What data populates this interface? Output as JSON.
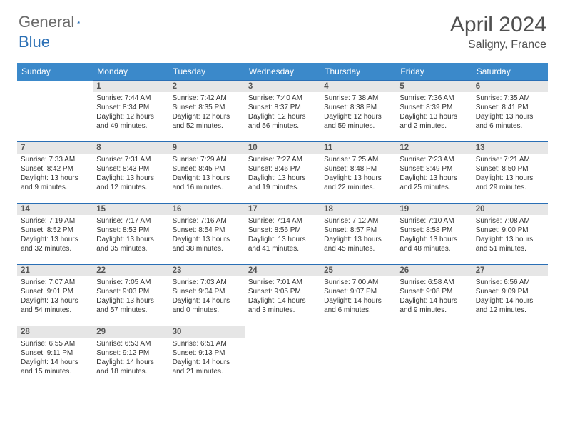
{
  "brand": {
    "general": "General",
    "blue": "Blue"
  },
  "header": {
    "title": "April 2024",
    "location": "Saligny, France"
  },
  "colors": {
    "header_bg": "#3b89ca",
    "border": "#2a6fb5",
    "daynum_bg": "#e6e6e6"
  },
  "day_names": [
    "Sunday",
    "Monday",
    "Tuesday",
    "Wednesday",
    "Thursday",
    "Friday",
    "Saturday"
  ],
  "weeks": [
    [
      null,
      {
        "n": "1",
        "sunrise": "7:44 AM",
        "sunset": "8:34 PM",
        "daylight": "12 hours and 49 minutes."
      },
      {
        "n": "2",
        "sunrise": "7:42 AM",
        "sunset": "8:35 PM",
        "daylight": "12 hours and 52 minutes."
      },
      {
        "n": "3",
        "sunrise": "7:40 AM",
        "sunset": "8:37 PM",
        "daylight": "12 hours and 56 minutes."
      },
      {
        "n": "4",
        "sunrise": "7:38 AM",
        "sunset": "8:38 PM",
        "daylight": "12 hours and 59 minutes."
      },
      {
        "n": "5",
        "sunrise": "7:36 AM",
        "sunset": "8:39 PM",
        "daylight": "13 hours and 2 minutes."
      },
      {
        "n": "6",
        "sunrise": "7:35 AM",
        "sunset": "8:41 PM",
        "daylight": "13 hours and 6 minutes."
      }
    ],
    [
      {
        "n": "7",
        "sunrise": "7:33 AM",
        "sunset": "8:42 PM",
        "daylight": "13 hours and 9 minutes."
      },
      {
        "n": "8",
        "sunrise": "7:31 AM",
        "sunset": "8:43 PM",
        "daylight": "13 hours and 12 minutes."
      },
      {
        "n": "9",
        "sunrise": "7:29 AM",
        "sunset": "8:45 PM",
        "daylight": "13 hours and 16 minutes."
      },
      {
        "n": "10",
        "sunrise": "7:27 AM",
        "sunset": "8:46 PM",
        "daylight": "13 hours and 19 minutes."
      },
      {
        "n": "11",
        "sunrise": "7:25 AM",
        "sunset": "8:48 PM",
        "daylight": "13 hours and 22 minutes."
      },
      {
        "n": "12",
        "sunrise": "7:23 AM",
        "sunset": "8:49 PM",
        "daylight": "13 hours and 25 minutes."
      },
      {
        "n": "13",
        "sunrise": "7:21 AM",
        "sunset": "8:50 PM",
        "daylight": "13 hours and 29 minutes."
      }
    ],
    [
      {
        "n": "14",
        "sunrise": "7:19 AM",
        "sunset": "8:52 PM",
        "daylight": "13 hours and 32 minutes."
      },
      {
        "n": "15",
        "sunrise": "7:17 AM",
        "sunset": "8:53 PM",
        "daylight": "13 hours and 35 minutes."
      },
      {
        "n": "16",
        "sunrise": "7:16 AM",
        "sunset": "8:54 PM",
        "daylight": "13 hours and 38 minutes."
      },
      {
        "n": "17",
        "sunrise": "7:14 AM",
        "sunset": "8:56 PM",
        "daylight": "13 hours and 41 minutes."
      },
      {
        "n": "18",
        "sunrise": "7:12 AM",
        "sunset": "8:57 PM",
        "daylight": "13 hours and 45 minutes."
      },
      {
        "n": "19",
        "sunrise": "7:10 AM",
        "sunset": "8:58 PM",
        "daylight": "13 hours and 48 minutes."
      },
      {
        "n": "20",
        "sunrise": "7:08 AM",
        "sunset": "9:00 PM",
        "daylight": "13 hours and 51 minutes."
      }
    ],
    [
      {
        "n": "21",
        "sunrise": "7:07 AM",
        "sunset": "9:01 PM",
        "daylight": "13 hours and 54 minutes."
      },
      {
        "n": "22",
        "sunrise": "7:05 AM",
        "sunset": "9:03 PM",
        "daylight": "13 hours and 57 minutes."
      },
      {
        "n": "23",
        "sunrise": "7:03 AM",
        "sunset": "9:04 PM",
        "daylight": "14 hours and 0 minutes."
      },
      {
        "n": "24",
        "sunrise": "7:01 AM",
        "sunset": "9:05 PM",
        "daylight": "14 hours and 3 minutes."
      },
      {
        "n": "25",
        "sunrise": "7:00 AM",
        "sunset": "9:07 PM",
        "daylight": "14 hours and 6 minutes."
      },
      {
        "n": "26",
        "sunrise": "6:58 AM",
        "sunset": "9:08 PM",
        "daylight": "14 hours and 9 minutes."
      },
      {
        "n": "27",
        "sunrise": "6:56 AM",
        "sunset": "9:09 PM",
        "daylight": "14 hours and 12 minutes."
      }
    ],
    [
      {
        "n": "28",
        "sunrise": "6:55 AM",
        "sunset": "9:11 PM",
        "daylight": "14 hours and 15 minutes."
      },
      {
        "n": "29",
        "sunrise": "6:53 AM",
        "sunset": "9:12 PM",
        "daylight": "14 hours and 18 minutes."
      },
      {
        "n": "30",
        "sunrise": "6:51 AM",
        "sunset": "9:13 PM",
        "daylight": "14 hours and 21 minutes."
      },
      null,
      null,
      null,
      null
    ]
  ],
  "labels": {
    "sunrise": "Sunrise:",
    "sunset": "Sunset:",
    "daylight": "Daylight:"
  }
}
